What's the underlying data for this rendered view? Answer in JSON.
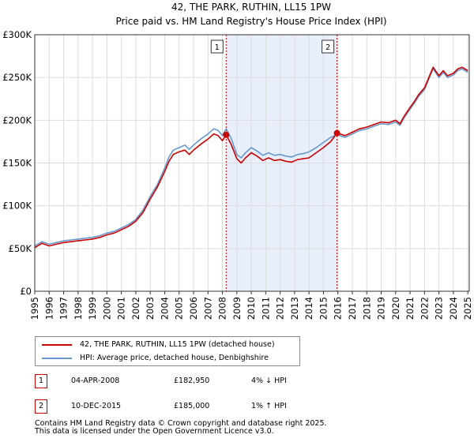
{
  "chart_data": {
    "type": "line",
    "title": "42, THE PARK, RUTHIN, LL15 1PW",
    "subtitle": "Price paid vs. HM Land Registry's House Price Index (HPI)",
    "ylim": [
      0,
      300000
    ],
    "xlim": [
      1995,
      2025.1
    ],
    "y_ticks": [
      0,
      50000,
      100000,
      150000,
      200000,
      250000,
      300000
    ],
    "y_tick_labels": [
      "£0",
      "£50K",
      "£100K",
      "£150K",
      "£200K",
      "£250K",
      "£300K"
    ],
    "x_ticks": [
      1995,
      1996,
      1997,
      1998,
      1999,
      2000,
      2001,
      2002,
      2003,
      2004,
      2005,
      2006,
      2007,
      2008,
      2009,
      2010,
      2011,
      2012,
      2013,
      2014,
      2015,
      2016,
      2017,
      2018,
      2019,
      2020,
      2021,
      2022,
      2023,
      2024,
      2025
    ],
    "x_tick_labels": [
      "1995",
      "1996",
      "1997",
      "1998",
      "1999",
      "2000",
      "2001",
      "2002",
      "2003",
      "2004",
      "2005",
      "2006",
      "2007",
      "2008",
      "2009",
      "2010",
      "2011",
      "2012",
      "2013",
      "2014",
      "2015",
      "2016",
      "2017",
      "2018",
      "2019",
      "2020",
      "2021",
      "2022",
      "2023",
      "2024",
      "2025"
    ],
    "grid": true,
    "shaded_region": [
      2008.26,
      2015.94
    ],
    "series": [
      {
        "name": "42, THE PARK, RUTHIN, LL15 1PW (detached house)",
        "color": "#cc0000",
        "x": [
          1995.0,
          1995.5,
          1996.0,
          1996.5,
          1997.0,
          1997.5,
          1998.0,
          1998.5,
          1999.0,
          1999.5,
          2000.0,
          2000.5,
          2001.0,
          2001.5,
          2002.0,
          2002.5,
          2003.0,
          2003.5,
          2004.0,
          2004.3,
          2004.6,
          2005.0,
          2005.4,
          2005.7,
          2006.0,
          2006.5,
          2007.0,
          2007.4,
          2007.7,
          2008.0,
          2008.26,
          2008.6,
          2009.0,
          2009.3,
          2009.6,
          2010.0,
          2010.4,
          2010.8,
          2011.2,
          2011.6,
          2012.0,
          2012.4,
          2012.8,
          2013.2,
          2013.6,
          2014.0,
          2014.5,
          2015.0,
          2015.5,
          2015.94,
          2016.5,
          2017.0,
          2017.5,
          2018.0,
          2018.5,
          2019.0,
          2019.5,
          2020.0,
          2020.3,
          2020.6,
          2021.0,
          2021.3,
          2021.6,
          2022.0,
          2022.3,
          2022.6,
          2023.0,
          2023.3,
          2023.6,
          2024.0,
          2024.3,
          2024.6,
          2025.0
        ],
        "values": [
          51000,
          56000,
          53000,
          55000,
          57000,
          58000,
          59000,
          60000,
          61000,
          63000,
          66000,
          68000,
          72000,
          76000,
          82000,
          92000,
          108000,
          122000,
          140000,
          152000,
          160000,
          163000,
          165000,
          160000,
          165000,
          172000,
          178000,
          184000,
          182000,
          176000,
          182950,
          172000,
          155000,
          150000,
          156000,
          162000,
          158000,
          153000,
          156000,
          153000,
          154000,
          152000,
          151000,
          154000,
          155000,
          156000,
          162000,
          168000,
          175000,
          185000,
          182000,
          186000,
          190000,
          192000,
          195000,
          198000,
          197000,
          200000,
          196000,
          205000,
          215000,
          222000,
          230000,
          238000,
          250000,
          262000,
          252000,
          258000,
          252000,
          255000,
          260000,
          262000,
          258000
        ]
      },
      {
        "name": "HPI: Average price, detached house, Denbighshire",
        "color": "#6699cc",
        "x": [
          1995.0,
          1995.5,
          1996.0,
          1996.5,
          1997.0,
          1997.5,
          1998.0,
          1998.5,
          1999.0,
          1999.5,
          2000.0,
          2000.5,
          2001.0,
          2001.5,
          2002.0,
          2002.5,
          2003.0,
          2003.5,
          2004.0,
          2004.3,
          2004.6,
          2005.0,
          2005.4,
          2005.7,
          2006.0,
          2006.5,
          2007.0,
          2007.4,
          2007.7,
          2008.0,
          2008.26,
          2008.6,
          2009.0,
          2009.3,
          2009.6,
          2010.0,
          2010.4,
          2010.8,
          2011.2,
          2011.6,
          2012.0,
          2012.4,
          2012.8,
          2013.2,
          2013.6,
          2014.0,
          2014.5,
          2015.0,
          2015.5,
          2015.94,
          2016.5,
          2017.0,
          2017.5,
          2018.0,
          2018.5,
          2019.0,
          2019.5,
          2020.0,
          2020.3,
          2020.6,
          2021.0,
          2021.3,
          2021.6,
          2022.0,
          2022.3,
          2022.6,
          2023.0,
          2023.3,
          2023.6,
          2024.0,
          2024.3,
          2024.6,
          2025.0
        ],
        "values": [
          53000,
          58000,
          55000,
          57000,
          59000,
          60000,
          61000,
          62000,
          63000,
          65000,
          68000,
          70000,
          74000,
          78000,
          84000,
          95000,
          111000,
          125000,
          144000,
          157000,
          165000,
          168000,
          171000,
          166000,
          171000,
          178000,
          184000,
          190000,
          188000,
          182000,
          190000,
          179000,
          160000,
          156000,
          162000,
          168000,
          164000,
          159000,
          162000,
          159000,
          160000,
          158000,
          157000,
          160000,
          161000,
          163000,
          168000,
          174000,
          180000,
          183000,
          180000,
          184000,
          188000,
          190000,
          193000,
          196000,
          195000,
          198000,
          194000,
          203000,
          213000,
          220000,
          228000,
          236000,
          248000,
          260000,
          250000,
          256000,
          250000,
          253000,
          258000,
          260000,
          256000
        ]
      }
    ],
    "markers": [
      {
        "label": "1",
        "x": 2008.26,
        "y": 182950
      },
      {
        "label": "2",
        "x": 2015.94,
        "y": 185000
      }
    ]
  },
  "legend": {
    "item1": "42, THE PARK, RUTHIN, LL15 1PW (detached house)",
    "item2": "HPI: Average price, detached house, Denbighshire"
  },
  "transactions": [
    {
      "num": "1",
      "date": "04-APR-2008",
      "price": "£182,950",
      "hpi": "4% ↓ HPI"
    },
    {
      "num": "2",
      "date": "10-DEC-2015",
      "price": "£185,000",
      "hpi": "1% ↑ HPI"
    }
  ],
  "footer": {
    "line1": "Contains HM Land Registry data © Crown copyright and database right 2025.",
    "line2": "This data is licensed under the Open Government Licence v3.0."
  },
  "colors": {
    "red": "#cc0000",
    "blue": "#6699cc",
    "shade": "#e8eefa",
    "grid": "#dddddd"
  }
}
